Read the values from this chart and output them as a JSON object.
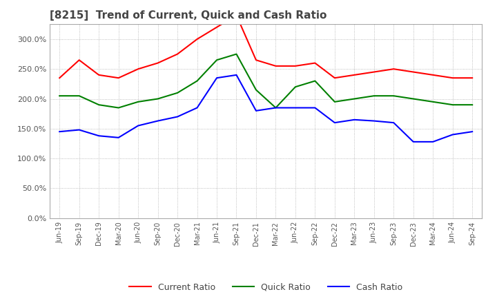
{
  "title": "[8215]  Trend of Current, Quick and Cash Ratio",
  "title_fontsize": 11,
  "title_color": "#444444",
  "x_labels": [
    "Jun-19",
    "Sep-19",
    "Dec-19",
    "Mar-20",
    "Jun-20",
    "Sep-20",
    "Dec-20",
    "Mar-21",
    "Jun-21",
    "Sep-21",
    "Dec-21",
    "Mar-22",
    "Jun-22",
    "Sep-22",
    "Dec-22",
    "Mar-23",
    "Jun-23",
    "Sep-23",
    "Dec-23",
    "Mar-24",
    "Jun-24",
    "Sep-24"
  ],
  "current_ratio": [
    235,
    265,
    240,
    235,
    250,
    260,
    275,
    300,
    320,
    340,
    265,
    255,
    255,
    260,
    235,
    240,
    245,
    250,
    245,
    240,
    235,
    235
  ],
  "quick_ratio": [
    205,
    205,
    190,
    185,
    195,
    200,
    210,
    230,
    265,
    275,
    215,
    185,
    220,
    230,
    195,
    200,
    205,
    205,
    200,
    195,
    190,
    190
  ],
  "cash_ratio": [
    145,
    148,
    138,
    135,
    155,
    163,
    170,
    185,
    235,
    240,
    180,
    185,
    185,
    185,
    160,
    165,
    163,
    160,
    128,
    128,
    140,
    145
  ],
  "current_color": "#ff0000",
  "quick_color": "#008000",
  "cash_color": "#0000ff",
  "ylim": [
    0,
    325
  ],
  "yticks": [
    0,
    50,
    100,
    150,
    200,
    250,
    300
  ],
  "grid_color": "#aaaaaa",
  "background_color": "#ffffff",
  "legend_labels": [
    "Current Ratio",
    "Quick Ratio",
    "Cash Ratio"
  ]
}
